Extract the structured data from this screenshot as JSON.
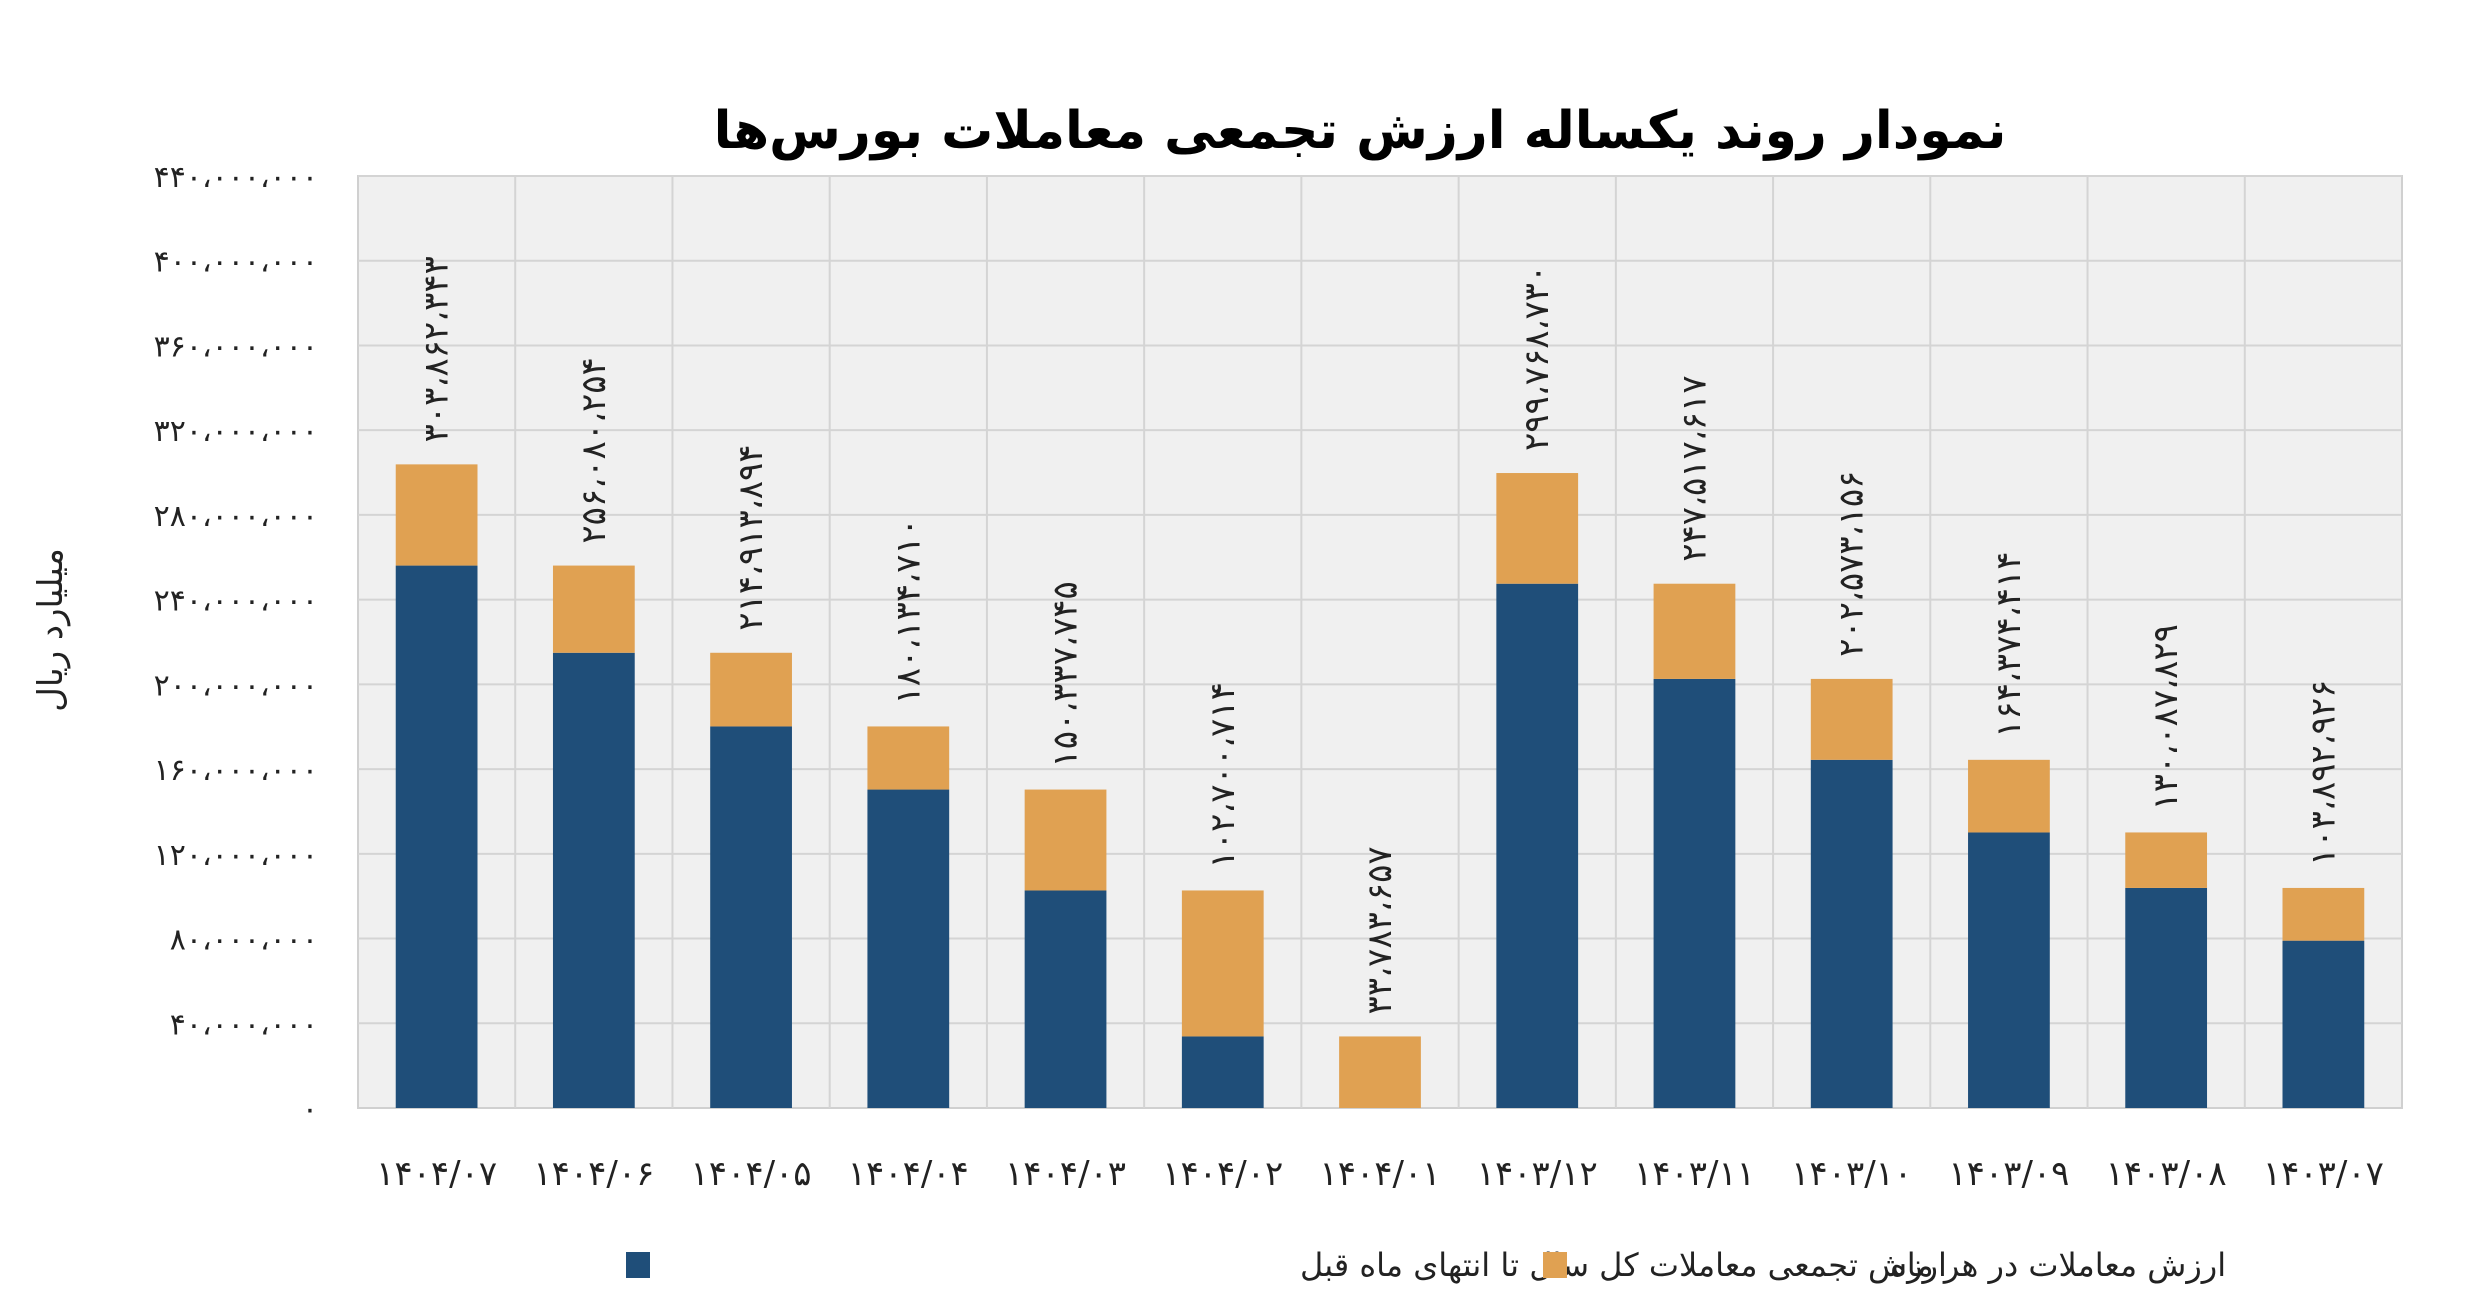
{
  "chart_data": {
    "type": "bar",
    "stacked": true,
    "title": "نمودار روند یکساله ارزش تجمعی معاملات بورس‌ها",
    "ylabel": "میلیارد ریال",
    "xlabel": "",
    "ylim": [
      0,
      440000000
    ],
    "yticks": [
      0,
      40000000,
      80000000,
      120000000,
      160000000,
      200000000,
      240000000,
      280000000,
      320000000,
      360000000,
      400000000,
      440000000
    ],
    "ytick_labels": [
      "۰",
      "۴۰،۰۰۰،۰۰۰",
      "۸۰،۰۰۰،۰۰۰",
      "۱۲۰،۰۰۰،۰۰۰",
      "۱۶۰،۰۰۰،۰۰۰",
      "۲۰۰،۰۰۰،۰۰۰",
      "۲۴۰،۰۰۰،۰۰۰",
      "۲۸۰،۰۰۰،۰۰۰",
      "۳۲۰،۰۰۰،۰۰۰",
      "۳۶۰،۰۰۰،۰۰۰",
      "۴۰۰،۰۰۰،۰۰۰",
      "۴۴۰،۰۰۰،۰۰۰"
    ],
    "grid": true,
    "legend_position": "bottom",
    "categories": [
      "۱۴۰۴/۰۷",
      "۱۴۰۴/۰۶",
      "۱۴۰۴/۰۵",
      "۱۴۰۴/۰۴",
      "۱۴۰۴/۰۳",
      "۱۴۰۴/۰۲",
      "۱۴۰۴/۰۱",
      "۱۴۰۳/۱۲",
      "۱۴۰۳/۱۱",
      "۱۴۰۳/۱۰",
      "۱۴۰۳/۰۹",
      "۱۴۰۳/۰۸",
      "۱۴۰۳/۰۷"
    ],
    "series": [
      {
        "name": "ارزش تجمعی معاملات کل سال تا انتهای ماه قبل",
        "color": "#1f4e79",
        "values": [
          256080254,
          214913894,
          180134710,
          150337745,
          102700714,
          33783657,
          0,
          247517617,
          202573156,
          164374414,
          130087829,
          103892926,
          79000000
        ]
      },
      {
        "name": "ارزش معاملات در هر ماه",
        "color": "#e0a152",
        "values": [
          47782089,
          41166360,
          34778184,
          29796965,
          47636969,
          68917057,
          33783657,
          52251113,
          44944461,
          38198742,
          34286585,
          26194903,
          24892926
        ]
      }
    ],
    "data_labels": [
      "۳۰۳،۸۶۲،۳۴۳",
      "۲۵۶،۰۸۰،۲۵۴",
      "۲۱۴،۹۱۳،۸۹۴",
      "۱۸۰،۱۳۴،۷۱۰",
      "۱۵۰،۳۳۷،۷۴۵",
      "۱۰۲،۷۰۰،۷۱۴",
      "۳۳،۷۸۳،۶۵۷",
      "۲۹۹،۷۶۸،۷۳۰",
      "۲۴۷،۵۱۷،۶۱۷",
      "۲۰۲،۵۷۳،۱۵۶",
      "۱۶۴،۳۷۴،۴۱۴",
      "۱۳۰،۰۸۷،۸۲۹",
      "۱۰۳،۸۹۲،۹۲۶"
    ]
  }
}
